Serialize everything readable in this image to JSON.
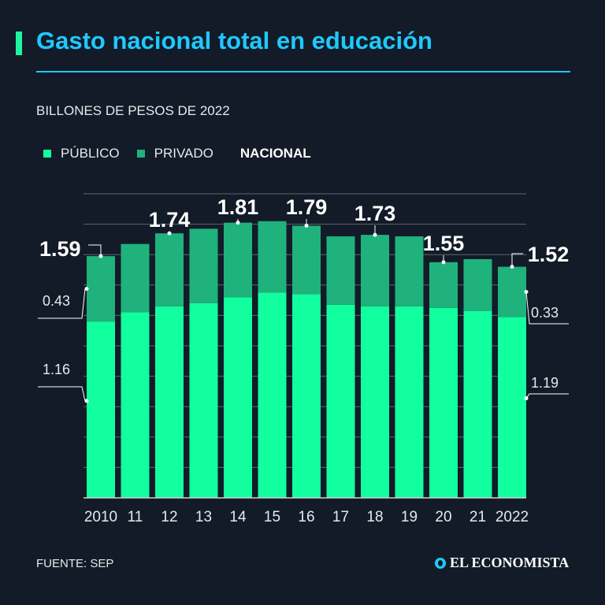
{
  "header": {
    "title": "Gasto nacional total en educación",
    "subtitle": "BILLONES DE PESOS DE 2022"
  },
  "legend": {
    "publico": "PÚBLICO",
    "privado": "PRIVADO",
    "nacional": "NACIONAL"
  },
  "footer": {
    "source": "FUENTE: SEP",
    "brand": "EL ECONOMISTA"
  },
  "colors": {
    "publico": "#12ff9f",
    "privado": "#1fb27c",
    "accent": "#1fc9ff",
    "background": "#121b27"
  },
  "chart_data": {
    "type": "bar",
    "stacked": true,
    "categories": [
      "2010",
      "11",
      "12",
      "13",
      "14",
      "15",
      "16",
      "17",
      "18",
      "19",
      "20",
      "21",
      "2022"
    ],
    "series": [
      {
        "name": "PÚBLICO",
        "values": [
          1.16,
          1.22,
          1.26,
          1.28,
          1.32,
          1.35,
          1.34,
          1.27,
          1.26,
          1.26,
          1.25,
          1.23,
          1.19
        ]
      },
      {
        "name": "PRIVADO",
        "values": [
          0.43,
          0.45,
          0.48,
          0.49,
          0.49,
          0.47,
          0.45,
          0.45,
          0.47,
          0.46,
          0.3,
          0.34,
          0.33
        ]
      }
    ],
    "totals": [
      1.59,
      1.67,
      1.74,
      1.77,
      1.81,
      1.82,
      1.79,
      1.72,
      1.73,
      1.72,
      1.55,
      1.57,
      1.52
    ],
    "total_labels": [
      {
        "index": 0,
        "text": "1.59"
      },
      {
        "index": 2,
        "text": "1.74"
      },
      {
        "index": 4,
        "text": "1.81"
      },
      {
        "index": 6,
        "text": "1.79"
      },
      {
        "index": 8,
        "text": "1.73"
      },
      {
        "index": 10,
        "text": "1.55"
      },
      {
        "index": 12,
        "text": "1.52"
      }
    ],
    "segment_labels": {
      "first_privado": "0.43",
      "first_publico": "1.16",
      "last_privado": "0.33",
      "last_publico": "1.19"
    },
    "ylim": [
      0,
      2.0
    ],
    "grid": true
  }
}
